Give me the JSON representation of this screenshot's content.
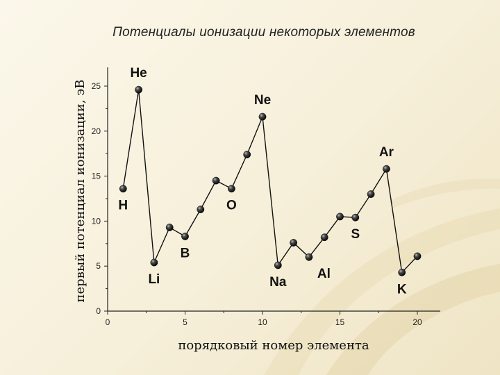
{
  "slide": {
    "title": "Потенциалы ионизации некоторых элементов"
  },
  "chart_data": {
    "type": "line",
    "xlabel": "порядковый номер элемента",
    "ylabel": "первый потенциал ионизации, эВ",
    "xlim": [
      0,
      21.5
    ],
    "ylim": [
      0,
      27
    ],
    "xticks": [
      0,
      5,
      10,
      15,
      20
    ],
    "yticks": [
      0,
      5,
      10,
      15,
      20,
      25
    ],
    "points": [
      {
        "x": 1,
        "y": 13.6
      },
      {
        "x": 2,
        "y": 24.6
      },
      {
        "x": 3,
        "y": 5.4
      },
      {
        "x": 4,
        "y": 9.3
      },
      {
        "x": 5,
        "y": 8.3
      },
      {
        "x": 6,
        "y": 11.3
      },
      {
        "x": 7,
        "y": 14.5
      },
      {
        "x": 8,
        "y": 13.6
      },
      {
        "x": 9,
        "y": 17.4
      },
      {
        "x": 10,
        "y": 21.6
      },
      {
        "x": 11,
        "y": 5.1
      },
      {
        "x": 12,
        "y": 7.6
      },
      {
        "x": 13,
        "y": 6.0
      },
      {
        "x": 14,
        "y": 8.2
      },
      {
        "x": 15,
        "y": 10.5
      },
      {
        "x": 16,
        "y": 10.4
      },
      {
        "x": 17,
        "y": 13.0
      },
      {
        "x": 18,
        "y": 15.8
      },
      {
        "x": 19,
        "y": 4.3
      },
      {
        "x": 20,
        "y": 6.1
      }
    ],
    "element_labels": [
      {
        "text": "H",
        "x": 1,
        "y": 13.6,
        "pos": "below"
      },
      {
        "text": "He",
        "x": 2,
        "y": 24.6,
        "pos": "above"
      },
      {
        "text": "Li",
        "x": 3,
        "y": 5.4,
        "pos": "below"
      },
      {
        "text": "B",
        "x": 5,
        "y": 8.3,
        "pos": "below"
      },
      {
        "text": "O",
        "x": 8,
        "y": 13.6,
        "pos": "below"
      },
      {
        "text": "Ne",
        "x": 10,
        "y": 21.6,
        "pos": "above"
      },
      {
        "text": "Na",
        "x": 11,
        "y": 5.1,
        "pos": "below"
      },
      {
        "text": "Al",
        "x": 13,
        "y": 6.0,
        "pos": "below-right"
      },
      {
        "text": "S",
        "x": 16,
        "y": 10.4,
        "pos": "below"
      },
      {
        "text": "Ar",
        "x": 18,
        "y": 15.8,
        "pos": "above"
      },
      {
        "text": "K",
        "x": 19,
        "y": 4.3,
        "pos": "below"
      }
    ],
    "grid": false,
    "marker": "sphere",
    "colors": {
      "line": "#111111",
      "marker": "#1a1a1a",
      "background": "#f6efd9"
    }
  }
}
